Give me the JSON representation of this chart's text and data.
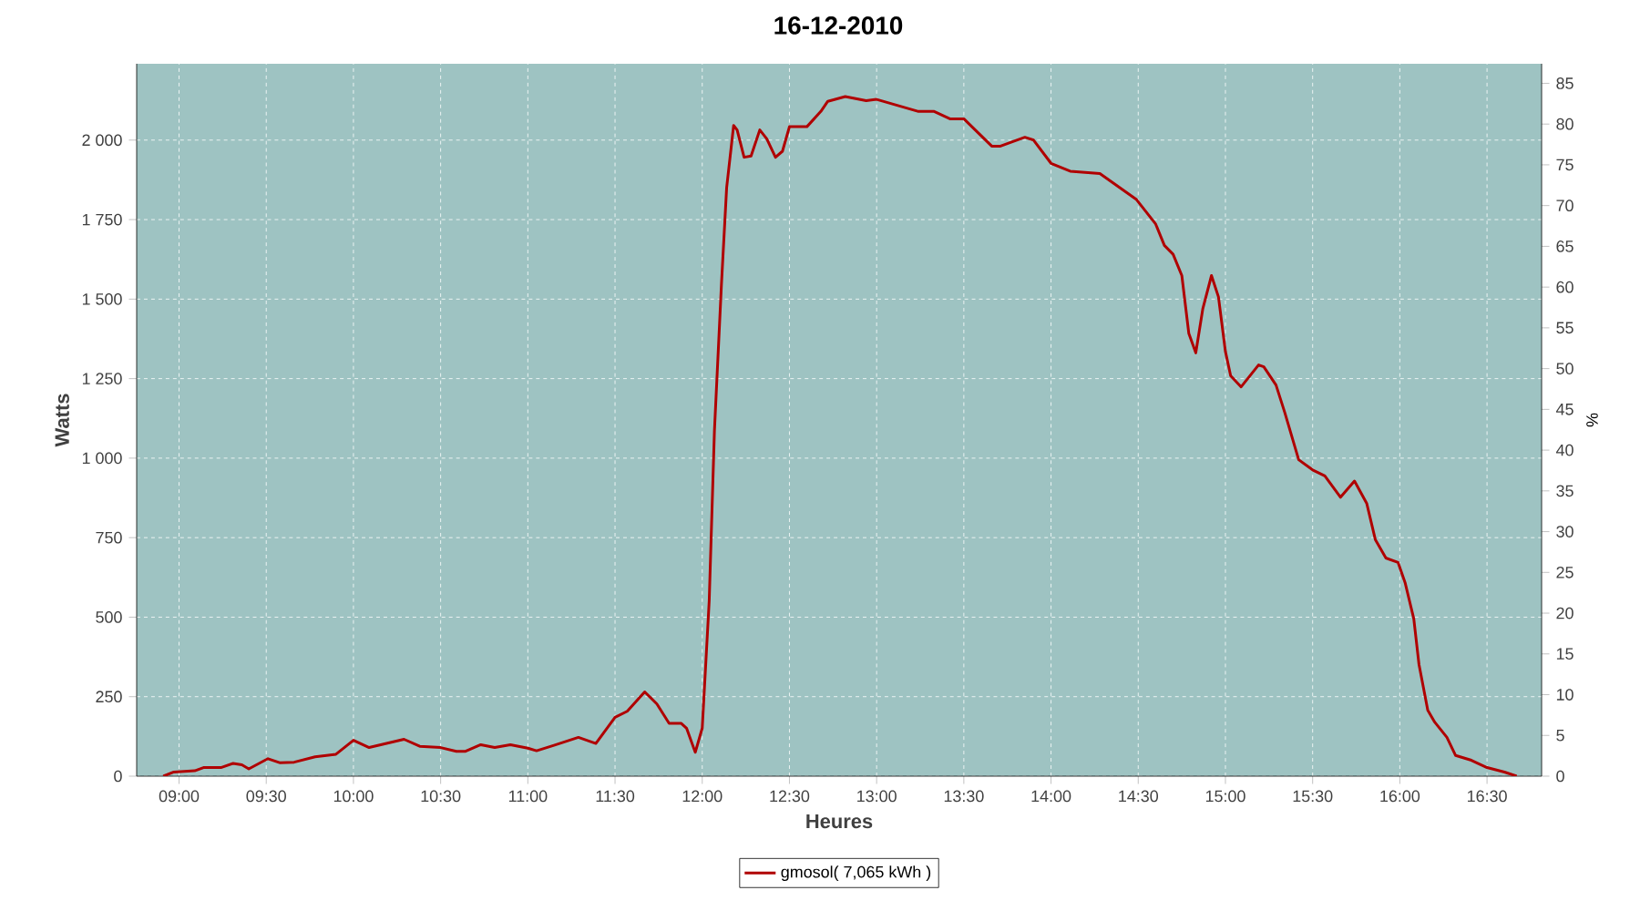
{
  "chart_data": {
    "type": "line",
    "title": "16-12-2010",
    "xlabel": "Heures",
    "ylabel": "Watts",
    "y2label": "%",
    "x": [
      8.91,
      8.97,
      9.09,
      9.14,
      9.24,
      9.31,
      9.36,
      9.4,
      9.51,
      9.58,
      9.66,
      9.78,
      9.9,
      10.0,
      10.09,
      10.19,
      10.29,
      10.38,
      10.5,
      10.59,
      10.64,
      10.73,
      10.81,
      10.9,
      11.0,
      11.05,
      11.15,
      11.29,
      11.39,
      11.5,
      11.57,
      11.67,
      11.74,
      11.81,
      11.88,
      11.91,
      11.96,
      12.0,
      12.04,
      12.07,
      12.11,
      12.14,
      12.18,
      12.2,
      12.24,
      12.28,
      12.33,
      12.37,
      12.42,
      12.46,
      12.5,
      12.6,
      12.68,
      12.72,
      12.82,
      12.94,
      13.0,
      13.24,
      13.33,
      13.42,
      13.5,
      13.66,
      13.71,
      13.85,
      13.9,
      14.0,
      14.11,
      14.28,
      14.49,
      14.6,
      14.65,
      14.7,
      14.75,
      14.79,
      14.83,
      14.87,
      14.92,
      14.96,
      15.0,
      15.03,
      15.09,
      15.19,
      15.22,
      15.29,
      15.34,
      15.42,
      15.5,
      15.57,
      15.66,
      15.74,
      15.81,
      15.86,
      15.92,
      15.99,
      16.03,
      16.08,
      16.11,
      16.16,
      16.2,
      16.27,
      16.32,
      16.41,
      16.5,
      16.6,
      16.67
    ],
    "series": [
      {
        "name": "gmosol( 7,065 kWh )",
        "color": "#b00000",
        "values": [
          0,
          13,
          17,
          27,
          27,
          40,
          36,
          23,
          55,
          42,
          44,
          61,
          69,
          113,
          90,
          103,
          116,
          94,
          90,
          78,
          78,
          99,
          90,
          99,
          88,
          80,
          97,
          122,
          103,
          185,
          204,
          265,
          227,
          166,
          166,
          151,
          75,
          151,
          552,
          1087,
          1545,
          1851,
          2046,
          2032,
          1946,
          1950,
          2032,
          2004,
          1946,
          1965,
          2042,
          2042,
          2090,
          2122,
          2137,
          2124,
          2128,
          2090,
          2090,
          2067,
          2067,
          1981,
          1981,
          2009,
          2000,
          1927,
          1902,
          1895,
          1813,
          1736,
          1669,
          1641,
          1574,
          1392,
          1331,
          1469,
          1574,
          1507,
          1335,
          1259,
          1224,
          1293,
          1287,
          1230,
          1144,
          995,
          963,
          944,
          877,
          928,
          858,
          743,
          686,
          672,
          609,
          495,
          351,
          208,
          170,
          122,
          65,
          50,
          27,
          13,
          0
        ]
      }
    ],
    "xlim": [
      8.757,
      16.813
    ],
    "xticks": [
      {
        "value": 9,
        "label": "09:00"
      },
      {
        "value": 9.5,
        "label": "09:30"
      },
      {
        "value": 10,
        "label": "10:00"
      },
      {
        "value": 10.5,
        "label": "10:30"
      },
      {
        "value": 11,
        "label": "11:00"
      },
      {
        "value": 11.5,
        "label": "11:30"
      },
      {
        "value": 12,
        "label": "12:00"
      },
      {
        "value": 12.5,
        "label": "12:30"
      },
      {
        "value": 13,
        "label": "13:00"
      },
      {
        "value": 13.5,
        "label": "13:30"
      },
      {
        "value": 14,
        "label": "14:00"
      },
      {
        "value": 14.5,
        "label": "14:30"
      },
      {
        "value": 15,
        "label": "15:00"
      },
      {
        "value": 15.5,
        "label": "15:30"
      },
      {
        "value": 16,
        "label": "16:00"
      },
      {
        "value": 16.5,
        "label": "16:30"
      }
    ],
    "ylim": [
      0,
      2240
    ],
    "yticks": [
      0,
      250,
      500,
      750,
      {
        "value": 1000,
        "label": "1 000"
      },
      {
        "value": 1250,
        "label": "1 250"
      },
      {
        "value": 1500,
        "label": "1 500"
      },
      {
        "value": 1750,
        "label": "1 750"
      },
      {
        "value": 2000,
        "label": "2 000"
      }
    ],
    "y2lim": [
      0,
      87.4
    ],
    "y2ticks": [
      0,
      5,
      10,
      15,
      20,
      25,
      30,
      35,
      40,
      45,
      50,
      55,
      60,
      65,
      70,
      75,
      80,
      85
    ],
    "grid": true,
    "legend": "bottom",
    "marker": "none",
    "line_style": "solid"
  }
}
